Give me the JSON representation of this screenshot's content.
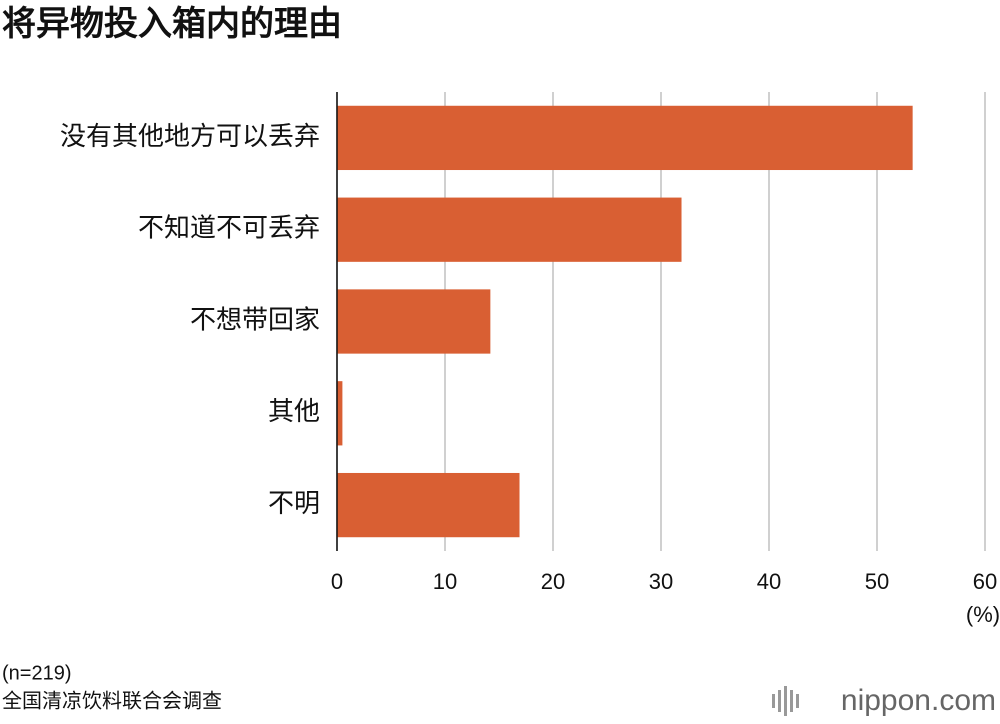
{
  "chart_data": {
    "type": "bar",
    "orientation": "horizontal",
    "title": "将异物投入箱内的理由",
    "categories": [
      "没有其他地方可以丢弃",
      "不知道不可丢弃",
      "不想带回家",
      "其他",
      "不明"
    ],
    "values": [
      53.3,
      31.9,
      14.2,
      0.5,
      16.9
    ],
    "color": "#d95f33",
    "xlim": [
      0,
      60
    ],
    "xticks": [
      0,
      10,
      20,
      30,
      40,
      50,
      60
    ],
    "x_unit": "(%)",
    "grid": true,
    "notes": [
      "(n=219)",
      "全国清凉饮料联合会调查"
    ],
    "logo": "nippon.com"
  }
}
